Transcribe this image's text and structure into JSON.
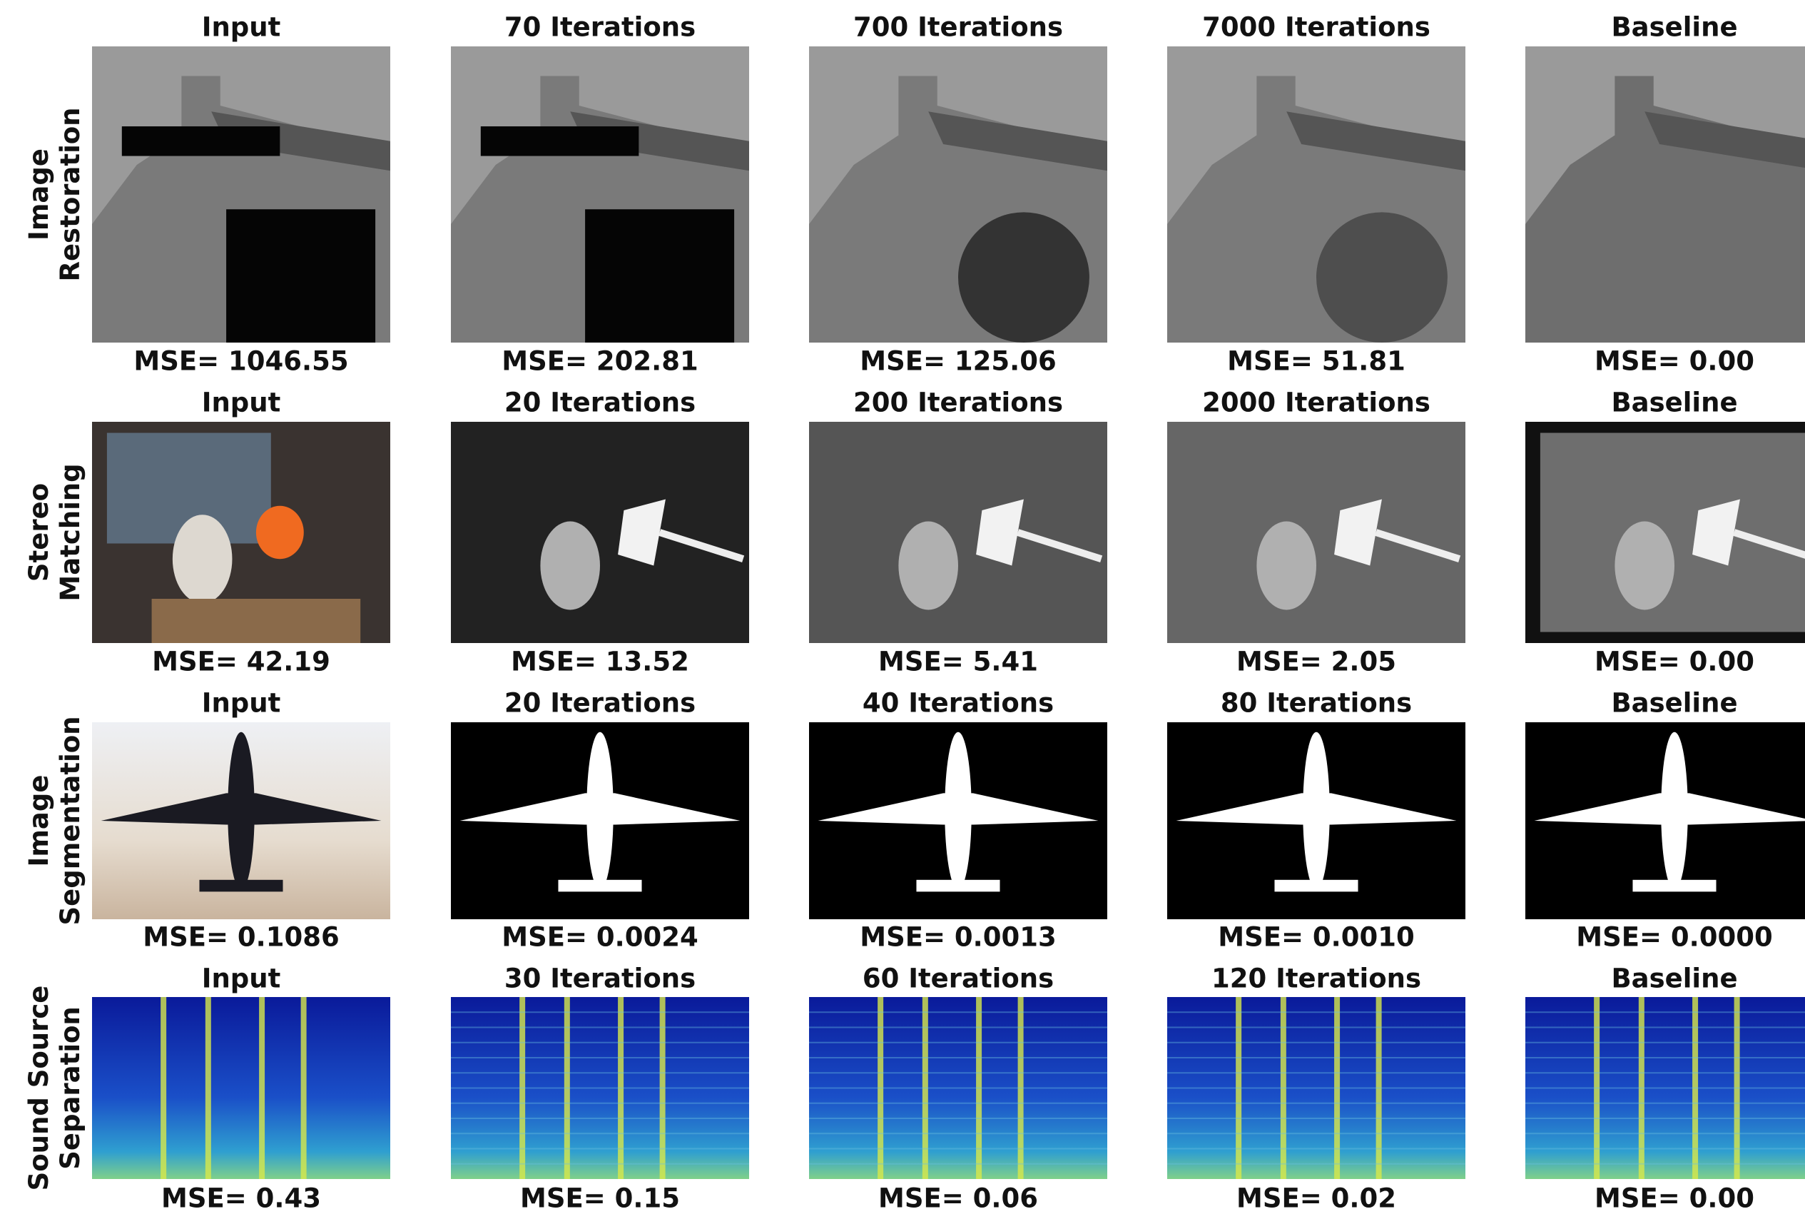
{
  "rows": [
    {
      "label": [
        "Image",
        "Restoration"
      ],
      "panels": [
        {
          "title": "Input",
          "caption": "MSE= 1046.55"
        },
        {
          "title": "70 Iterations",
          "caption": "MSE= 202.81"
        },
        {
          "title": "700 Iterations",
          "caption": "MSE= 125.06"
        },
        {
          "title": "7000 Iterations",
          "caption": "MSE= 51.81"
        },
        {
          "title": "Baseline",
          "caption": "MSE= 0.00"
        }
      ]
    },
    {
      "label": [
        "Stereo",
        "Matching"
      ],
      "panels": [
        {
          "title": "Input",
          "caption": "MSE= 42.19"
        },
        {
          "title": "20 Iterations",
          "caption": "MSE= 13.52"
        },
        {
          "title": "200 Iterations",
          "caption": "MSE= 5.41"
        },
        {
          "title": "2000 Iterations",
          "caption": "MSE= 2.05"
        },
        {
          "title": "Baseline",
          "caption": "MSE= 0.00"
        }
      ]
    },
    {
      "label": [
        "Image",
        "Segmentation"
      ],
      "panels": [
        {
          "title": "Input",
          "caption": "MSE= 0.1086"
        },
        {
          "title": "20 Iterations",
          "caption": "MSE= 0.0024"
        },
        {
          "title": "40 Iterations",
          "caption": "MSE= 0.0013"
        },
        {
          "title": "80 Iterations",
          "caption": "MSE= 0.0010"
        },
        {
          "title": "Baseline",
          "caption": "MSE= 0.0000"
        }
      ]
    },
    {
      "label": [
        "Sound Source",
        "Separation"
      ],
      "panels": [
        {
          "title": "Input",
          "caption": "MSE= 0.43"
        },
        {
          "title": "30 Iterations",
          "caption": "MSE= 0.15"
        },
        {
          "title": "60 Iterations",
          "caption": "MSE= 0.06"
        },
        {
          "title": "120 Iterations",
          "caption": "MSE= 0.02"
        },
        {
          "title": "Baseline",
          "caption": "MSE= 0.00"
        }
      ]
    }
  ]
}
